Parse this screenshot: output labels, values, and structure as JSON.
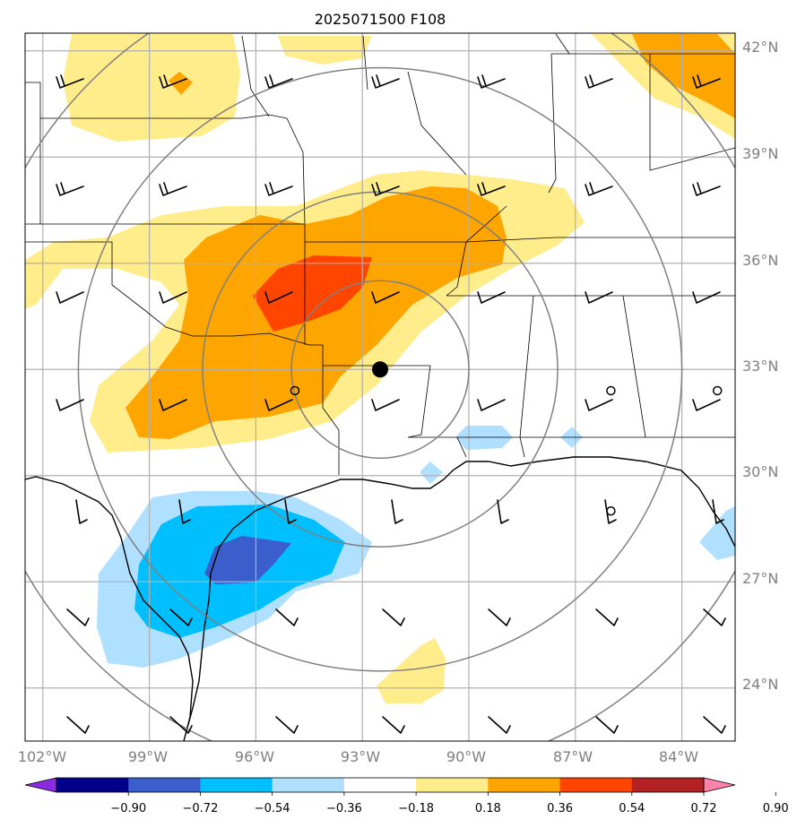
{
  "title": "2025071500 F108",
  "lat_labels": [
    "42°N",
    "39°N",
    "36°N",
    "33°N",
    "30°N",
    "27°N",
    "24°N"
  ],
  "lon_labels": [
    "102°W",
    "99°W",
    "96°W",
    "93°W",
    "90°W",
    "87°W",
    "84°W"
  ],
  "colorbar": {
    "ticks": [
      "−0.90",
      "−0.72",
      "−0.54",
      "−0.36",
      "−0.18",
      "0.18",
      "0.36",
      "0.54",
      "0.72",
      "0.90"
    ],
    "colors": [
      "#8a2be2",
      "#00008b",
      "#3a5fcd",
      "#00bfff",
      "#b0e0ff",
      "#ffffff",
      "#ffec8b",
      "#ffa500",
      "#ff4500",
      "#b22222",
      "#ff82ab"
    ]
  },
  "map": {
    "extent_lon": [
      -102.5,
      -82.5
    ],
    "extent_lat": [
      22.5,
      42.5
    ],
    "center_marker": {
      "lon": -92.5,
      "lat": 33.0
    },
    "station_markers": [
      {
        "lon": -94.9,
        "lat": 32.4
      },
      {
        "lon": -86.0,
        "lat": 32.4
      },
      {
        "lon": -83.0,
        "lat": 32.4
      },
      {
        "lon": -86.0,
        "lat": 29.0
      }
    ],
    "range_rings_deg": [
      2.5,
      5.0,
      8.5,
      11.5
    ]
  }
}
